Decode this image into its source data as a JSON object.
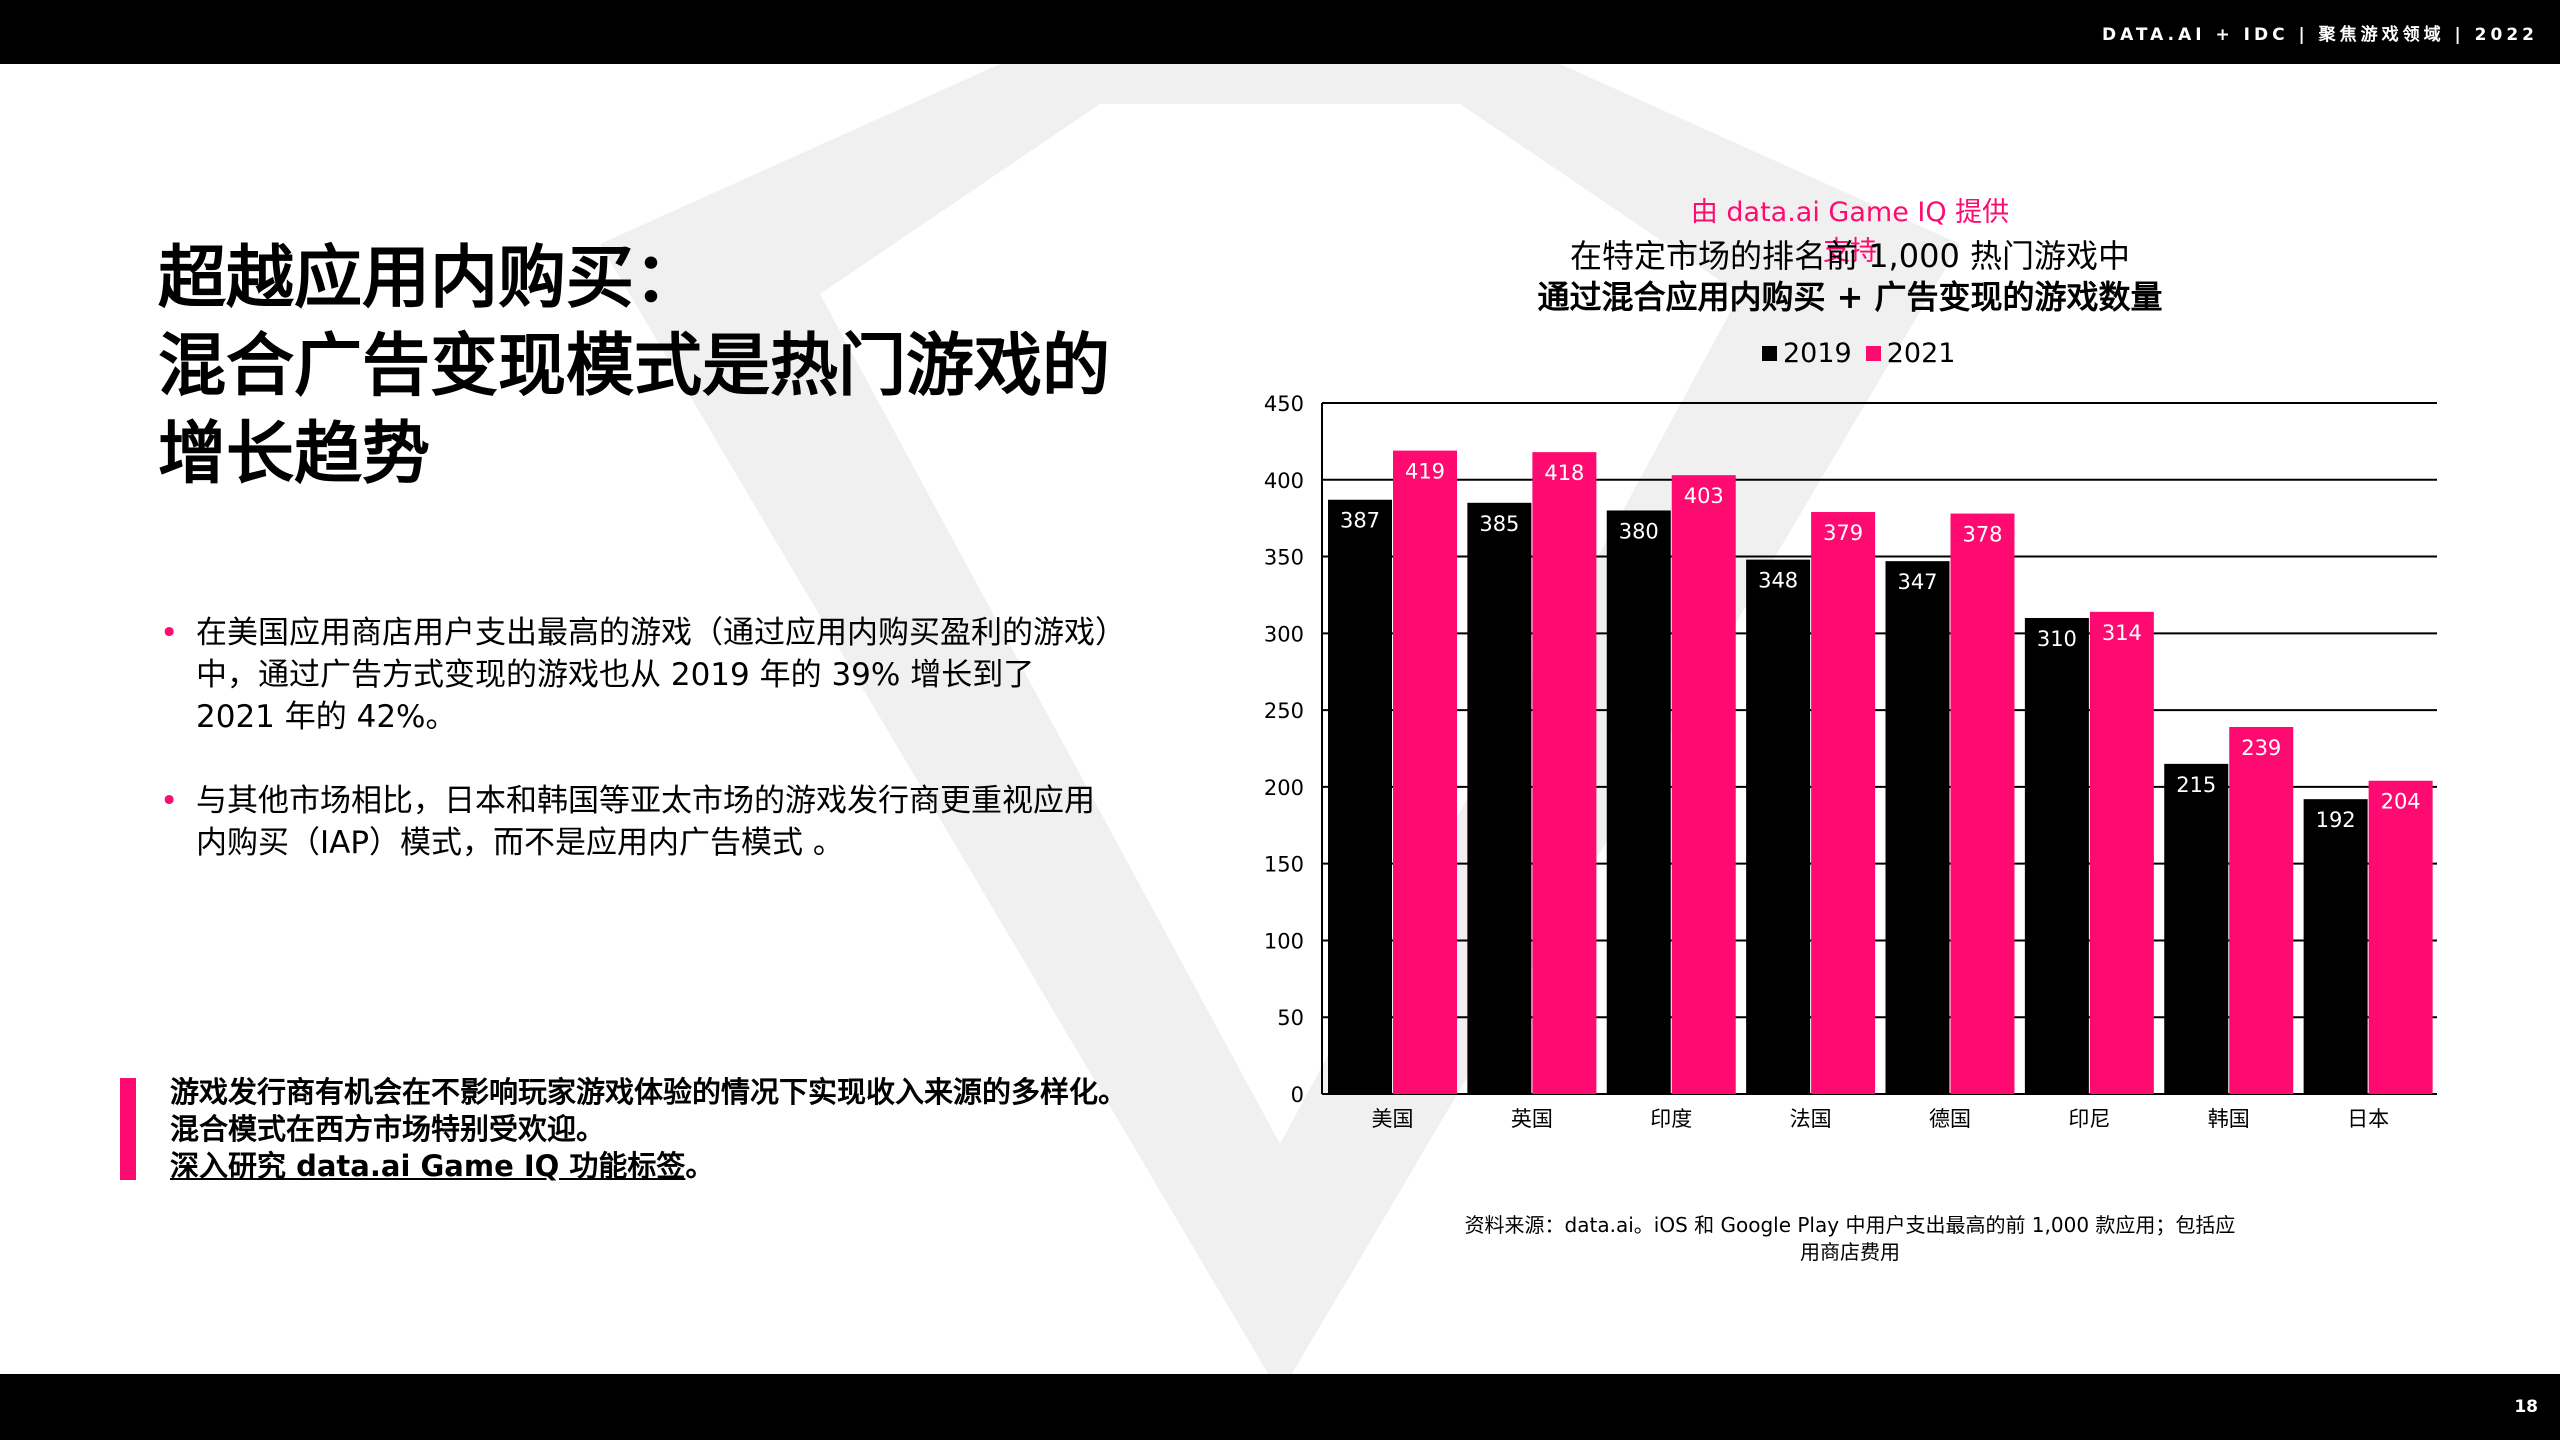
{
  "header": {
    "text": "DATA.AI + IDC  |  聚焦游戏领域  | 2022"
  },
  "page_number": "18",
  "title_lines": [
    "超越应用内购买：",
    "混合广告变现模式是热门游戏的",
    "增长趋势"
  ],
  "bullets": [
    "在美国应用商店用户支出最高的游戏（通过应用内购买盈利的游戏）中，通过广告方式变现的游戏也从 2019 年的 39% 增长到了 2021 年的 42%。",
    "与其他市场相比，日本和韩国等亚太市场的游戏发行商更重视应用内购买（IAP）模式，而不是应用内广告模式 。"
  ],
  "callout": {
    "text": "游戏发行商有机会在不影响玩家游戏体验的情况下实现收入来源的多样化。混合模式在西方市场特别受欢迎。",
    "link": "深入研究 data.ai Game IQ 功能标签",
    "suffix": "。"
  },
  "powered_by": "由 data.ai Game IQ 提供支持",
  "source": {
    "line1": "资料来源：data.ai。iOS 和 Google Play 中用户支出最高的前 1,000 款应用；包括应",
    "line2": "用商店费用"
  },
  "colors": {
    "accent": "#ff0a70",
    "bar_2019": "#000000",
    "bar_2021": "#ff0a70",
    "bars_bg": "#000000"
  },
  "chart_data": {
    "type": "bar",
    "title_line1": "在特定市场的排名前 1,000 热门游戏中",
    "title_line2": "通过混合应用内购买 + 广告变现的游戏数量",
    "categories": [
      "美国",
      "英国",
      "印度",
      "法国",
      "德国",
      "印尼",
      "韩国",
      "日本"
    ],
    "series": [
      {
        "name": "2019",
        "color": "#000000",
        "values": [
          387,
          385,
          380,
          348,
          347,
          310,
          215,
          192
        ]
      },
      {
        "name": "2021",
        "color": "#ff0a70",
        "values": [
          419,
          418,
          403,
          379,
          378,
          314,
          239,
          204
        ]
      }
    ],
    "ylim": [
      0,
      450
    ],
    "yticks": [
      0,
      50,
      100,
      150,
      200,
      250,
      300,
      350,
      400,
      450
    ],
    "grid": true,
    "legend_position": "top"
  }
}
